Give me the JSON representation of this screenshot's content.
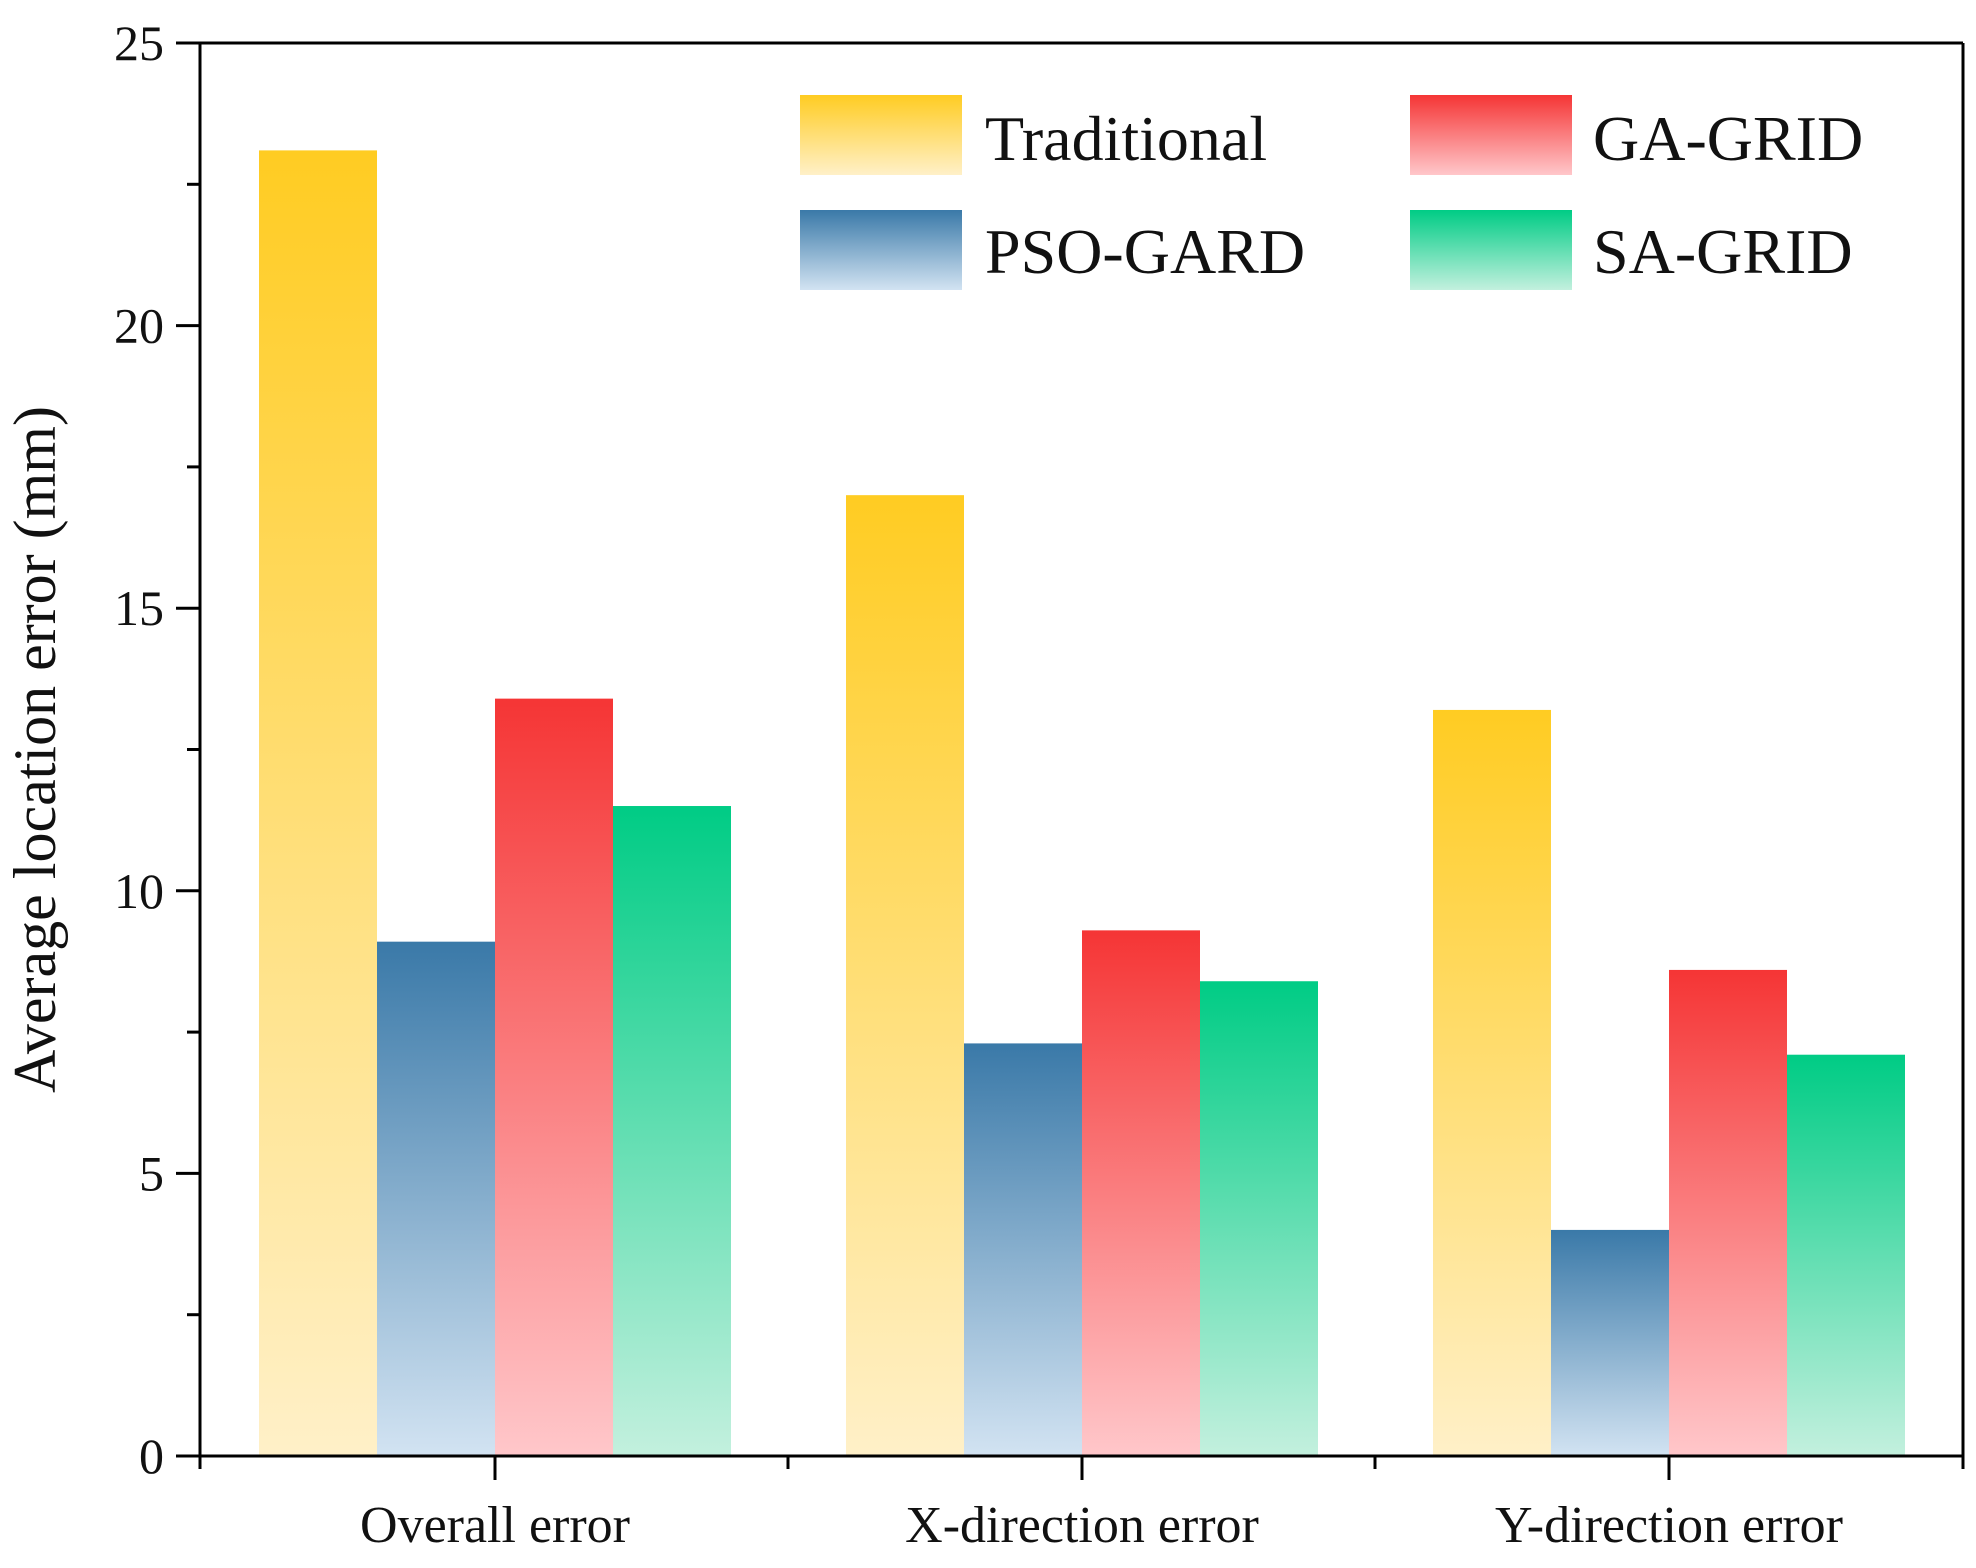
{
  "chart_data": {
    "type": "bar",
    "title": "",
    "xlabel": "",
    "ylabel": "Average location error (mm)",
    "ylim": [
      0,
      25
    ],
    "yticks": [
      0,
      5,
      10,
      15,
      20,
      25
    ],
    "grid": false,
    "legend_position": "top-right",
    "categories": [
      "Overall error",
      "X-direction error",
      "Y-direction error"
    ],
    "series": [
      {
        "name": "Traditional",
        "values": [
          23.1,
          17.0,
          13.2
        ],
        "color_top": "#FFCC22",
        "color_bottom": "#FFF0C8"
      },
      {
        "name": "PSO-GARD",
        "values": [
          9.1,
          7.3,
          4.0
        ],
        "color_top": "#3A79A8",
        "color_bottom": "#D2E3F2"
      },
      {
        "name": "GA-GRID",
        "values": [
          13.4,
          9.3,
          8.6
        ],
        "color_top": "#F53535",
        "color_bottom": "#FFC7CA"
      },
      {
        "name": "SA-GRID",
        "values": [
          11.5,
          8.4,
          7.1
        ],
        "color_top": "#00CC85",
        "color_bottom": "#C3F0DE"
      }
    ]
  }
}
